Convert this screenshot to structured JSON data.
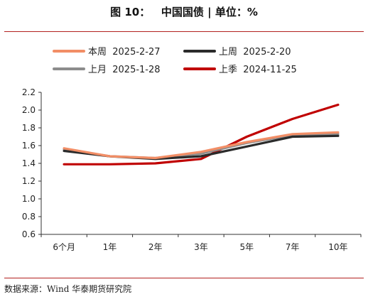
{
  "figure": {
    "title": "图 10：   中国国债 | 单位：%",
    "source": "数据来源：Wind 华泰期货研究院"
  },
  "colors": {
    "rule": "#b2201f",
    "axis": "#333333"
  },
  "chart_data": {
    "type": "line",
    "title": "",
    "xlabel": "",
    "ylabel": "",
    "categories": [
      "6个月",
      "1年",
      "2年",
      "3年",
      "5年",
      "7年",
      "10年"
    ],
    "ylim": [
      0.6,
      2.2
    ],
    "yticks": [
      "0.6",
      "0.8",
      "1.0",
      "1.2",
      "1.4",
      "1.6",
      "1.8",
      "2.0",
      "2.2"
    ],
    "grid": false,
    "legend_position": "top",
    "series": [
      {
        "name": "本周  2025-2-27",
        "color": "#f28e66",
        "values": [
          1.57,
          1.48,
          1.46,
          1.53,
          1.64,
          1.73,
          1.75
        ]
      },
      {
        "name": "上周  2025-2-20",
        "color": "#2b2b2b",
        "values": [
          1.54,
          1.48,
          1.45,
          1.48,
          1.59,
          1.7,
          1.71
        ]
      },
      {
        "name": "上月  2025-1-28",
        "color": "#8c8c8c",
        "values": [
          1.56,
          1.48,
          1.46,
          1.51,
          1.63,
          1.72,
          1.73
        ]
      },
      {
        "name": "上季  2024-11-25",
        "color": "#c00000",
        "values": [
          1.39,
          1.39,
          1.4,
          1.45,
          1.7,
          1.9,
          2.06
        ]
      }
    ]
  }
}
